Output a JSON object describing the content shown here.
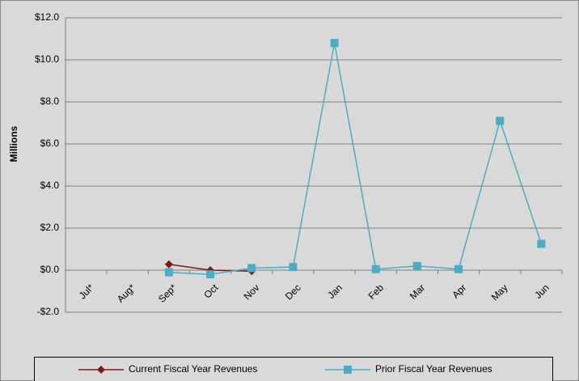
{
  "chart_data": {
    "type": "line",
    "y_label": "Millions",
    "categories": [
      "Jul*",
      "Aug*",
      "Sep*",
      "Oct",
      "Nov",
      "Dec",
      "Jan",
      "Feb",
      "Mar",
      "Apr",
      "May",
      "Jun"
    ],
    "series": [
      {
        "name": "Current Fiscal Year Revenues",
        "color": "#7b1a1a",
        "marker": "diamond",
        "values": [
          null,
          null,
          0.28,
          0.0,
          -0.05,
          null,
          null,
          null,
          null,
          null,
          null,
          null
        ]
      },
      {
        "name": "Prior Fiscal Year Revenues",
        "color": "#4bacc6",
        "marker": "square",
        "values": [
          null,
          null,
          -0.1,
          -0.2,
          0.1,
          0.15,
          10.8,
          0.05,
          0.2,
          0.05,
          7.1,
          1.25
        ]
      }
    ],
    "ylim": [
      -2,
      12
    ],
    "yticks": [
      {
        "value": -2,
        "label": "-$2.0"
      },
      {
        "value": 0,
        "label": "$0.0"
      },
      {
        "value": 2,
        "label": "$2.0"
      },
      {
        "value": 4,
        "label": "$4.0"
      },
      {
        "value": 6,
        "label": "$6.0"
      },
      {
        "value": 8,
        "label": "$8.0"
      },
      {
        "value": 10,
        "label": "$10.0"
      },
      {
        "value": 12,
        "label": "$12.0"
      }
    ],
    "grid": true,
    "legend": "bottom"
  }
}
